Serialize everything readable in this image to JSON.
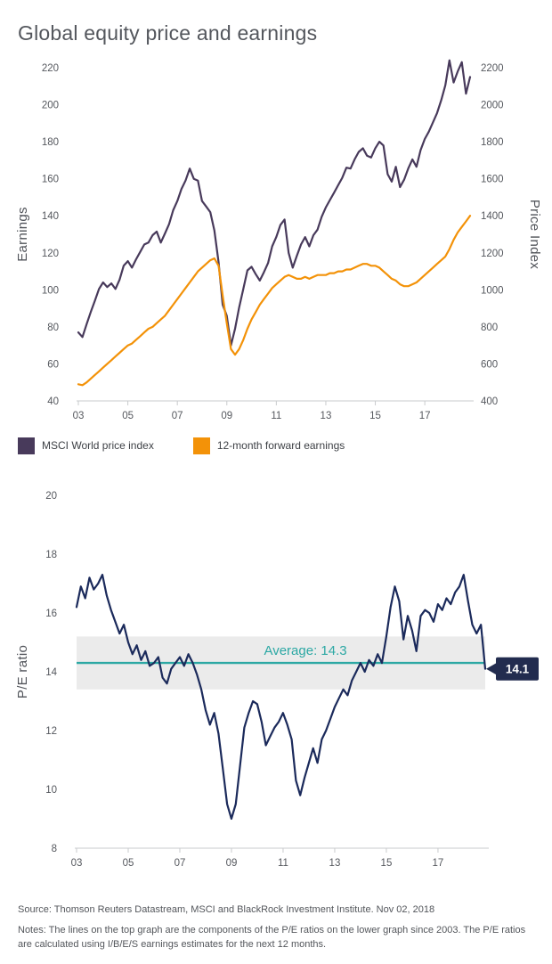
{
  "page": {
    "title": "Global equity price and earnings",
    "source": "Source: Thomson Reuters Datastream, MSCI and BlackRock Investment Institute. Nov 02, 2018",
    "notes": "Notes: The lines on the top graph are the components of the P/E ratios on the lower graph since 2003. The P/E ratios are calculated using I/B/E/S earnings estimates for the next 12 months."
  },
  "colors": {
    "price_line": "#483A5B",
    "earnings_line": "#F39208",
    "pe_line": "#1B2A5B",
    "average_line": "#2CA8A4",
    "average_band": "#EBEBEB",
    "callout_bg": "#222C4F",
    "axis_text": "#55585E",
    "axis_line": "#C9CBCD"
  },
  "legend": {
    "items": [
      {
        "label": "MSCI World price index",
        "color": "#483A5B"
      },
      {
        "label": "12-month forward earnings",
        "color": "#F39208"
      }
    ]
  },
  "chart_data": [
    {
      "type": "line",
      "name": "price-and-earnings",
      "title": "Global equity price and earnings",
      "x_start": 2003,
      "x_end": 2018.83,
      "x_ticks": [
        "03",
        "05",
        "07",
        "09",
        "11",
        "13",
        "15",
        "17"
      ],
      "x_tick_years": [
        2003,
        2005,
        2007,
        2009,
        2011,
        2013,
        2015,
        2017
      ],
      "left_axis": {
        "label": "Earnings",
        "min": 40,
        "max": 220,
        "ticks": [
          220,
          200,
          180,
          160,
          140,
          120,
          100,
          80,
          60,
          40
        ]
      },
      "right_axis": {
        "label": "Price Index",
        "min": 400,
        "max": 2200,
        "ticks": [
          2200,
          2000,
          1800,
          1600,
          1400,
          1200,
          1000,
          800,
          600,
          400
        ]
      },
      "series": [
        {
          "name": "MSCI World price index",
          "axis": "right",
          "color": "#483A5B",
          "values": [
            770,
            745,
            815,
            880,
            940,
            1005,
            1040,
            1015,
            1035,
            1005,
            1055,
            1130,
            1155,
            1120,
            1165,
            1205,
            1245,
            1255,
            1295,
            1315,
            1255,
            1305,
            1355,
            1430,
            1480,
            1545,
            1590,
            1655,
            1600,
            1590,
            1480,
            1450,
            1420,
            1320,
            1150,
            920,
            860,
            700,
            790,
            905,
            1005,
            1105,
            1125,
            1085,
            1050,
            1095,
            1145,
            1235,
            1285,
            1350,
            1380,
            1200,
            1120,
            1185,
            1245,
            1285,
            1235,
            1295,
            1325,
            1395,
            1445,
            1485,
            1525,
            1565,
            1605,
            1660,
            1655,
            1705,
            1745,
            1765,
            1725,
            1715,
            1765,
            1800,
            1780,
            1625,
            1585,
            1665,
            1555,
            1595,
            1655,
            1705,
            1665,
            1755,
            1815,
            1855,
            1905,
            1955,
            2025,
            2105,
            2240,
            2120,
            2180,
            2230,
            2060,
            2150
          ]
        },
        {
          "name": "12-month forward earnings",
          "axis": "left",
          "color": "#F39208",
          "values": [
            49,
            48.5,
            50,
            52,
            54,
            56,
            58,
            60,
            62,
            64,
            66,
            68,
            70,
            71,
            73,
            75,
            77,
            79,
            80,
            82,
            84,
            86,
            89,
            92,
            95,
            98,
            101,
            104,
            107,
            110,
            112,
            114,
            116,
            117,
            113,
            97,
            82,
            68,
            65,
            68,
            73,
            79,
            84,
            88,
            92,
            95,
            98,
            101,
            103,
            105,
            107,
            108,
            107,
            106,
            106,
            107,
            106,
            107,
            108,
            108,
            108,
            109,
            109,
            110,
            110,
            111,
            111,
            112,
            113,
            114,
            114,
            113,
            113,
            112,
            110,
            108,
            106,
            105,
            103,
            102,
            102,
            103,
            104,
            106,
            108,
            110,
            112,
            114,
            116,
            118,
            122,
            127,
            131,
            134,
            137,
            140
          ]
        }
      ]
    },
    {
      "type": "line",
      "name": "pe-ratio",
      "title": "",
      "x_start": 2003,
      "x_end": 2018.83,
      "x_ticks": [
        "03",
        "05",
        "07",
        "09",
        "11",
        "13",
        "15",
        "17"
      ],
      "x_tick_years": [
        2003,
        2005,
        2007,
        2009,
        2011,
        2013,
        2015,
        2017
      ],
      "y_axis": {
        "label": "P/E ratio",
        "min": 8,
        "max": 20,
        "ticks": [
          20,
          18,
          16,
          14,
          12,
          10,
          8
        ]
      },
      "average": {
        "value": 14.3,
        "label": "Average: 14.3",
        "band": [
          13.4,
          15.2
        ],
        "color": "#2CA8A4",
        "band_color": "#EBEBEB"
      },
      "current": {
        "value": 14.1,
        "label": "14.1",
        "bg": "#222C4F"
      },
      "series": [
        {
          "name": "P/E ratio",
          "color": "#1B2A5B",
          "values": [
            16.2,
            16.9,
            16.5,
            17.2,
            16.8,
            17.0,
            17.3,
            16.6,
            16.1,
            15.7,
            15.3,
            15.6,
            15.0,
            14.6,
            14.9,
            14.4,
            14.7,
            14.2,
            14.3,
            14.5,
            13.8,
            13.6,
            14.1,
            14.3,
            14.5,
            14.2,
            14.6,
            14.3,
            13.9,
            13.4,
            12.7,
            12.2,
            12.6,
            11.9,
            10.7,
            9.5,
            9.0,
            9.5,
            10.8,
            12.1,
            12.6,
            13.0,
            12.9,
            12.3,
            11.5,
            11.8,
            12.1,
            12.3,
            12.6,
            12.2,
            11.7,
            10.3,
            9.8,
            10.4,
            10.9,
            11.4,
            10.9,
            11.7,
            12.0,
            12.4,
            12.8,
            13.1,
            13.4,
            13.2,
            13.7,
            14.0,
            14.3,
            14.0,
            14.4,
            14.2,
            14.6,
            14.3,
            15.2,
            16.2,
            16.9,
            16.4,
            15.1,
            15.9,
            15.4,
            14.7,
            15.9,
            16.1,
            16.0,
            15.7,
            16.3,
            16.1,
            16.5,
            16.3,
            16.7,
            16.9,
            17.3,
            16.4,
            15.6,
            15.3,
            15.6,
            14.1
          ]
        }
      ]
    }
  ]
}
